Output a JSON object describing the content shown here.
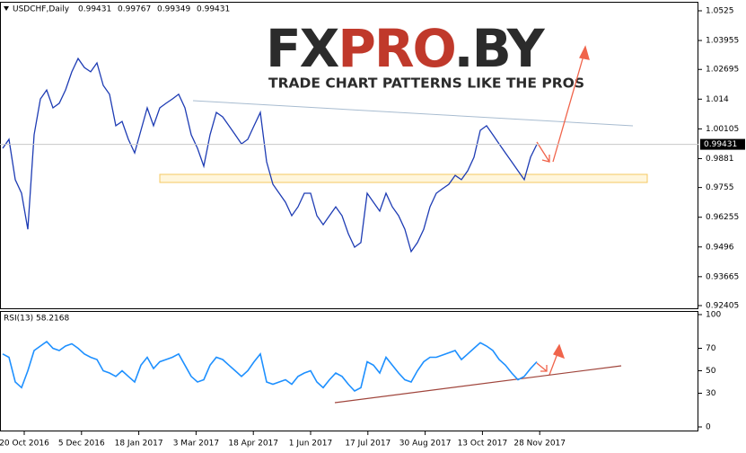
{
  "chart_data": [
    {
      "type": "line",
      "title": "USDCHF,Daily",
      "ohlc": [
        0.99431,
        0.99767,
        0.99349,
        0.99431
      ],
      "color": "#1e3cb4",
      "values": [
        0.9926,
        0.9965,
        0.9789,
        0.973,
        0.9573,
        0.9985,
        1.0141,
        1.018,
        1.0102,
        1.0122,
        1.018,
        1.0259,
        1.0317,
        1.0278,
        1.0259,
        1.0298,
        1.02,
        1.0161,
        1.0024,
        1.0043,
        0.9965,
        0.9906,
        1.0004,
        1.0102,
        1.0024,
        1.0102,
        1.0122,
        1.0141,
        1.0161,
        1.0102,
        0.9985,
        0.9926,
        0.9848,
        0.9985,
        1.0082,
        1.0063,
        1.0024,
        0.9985,
        0.9945,
        0.9965,
        1.0024,
        1.0082,
        0.9867,
        0.9769,
        0.973,
        0.9691,
        0.9632,
        0.9671,
        0.973,
        0.973,
        0.9632,
        0.9593,
        0.9632,
        0.9671,
        0.9632,
        0.9554,
        0.9495,
        0.9515,
        0.973,
        0.9691,
        0.9652,
        0.973,
        0.9671,
        0.9632,
        0.9573,
        0.9476,
        0.9515,
        0.9573,
        0.9671,
        0.973,
        0.975,
        0.9769,
        0.9808,
        0.9789,
        0.9828,
        0.9887,
        1.0004,
        1.0024,
        0.9985,
        0.9945,
        0.9906,
        0.9867,
        0.9828,
        0.9789,
        0.9887,
        0.99431
      ],
      "ylim": [
        0.92288,
        1.05602
      ],
      "yticks": [
        1.0525,
        1.03955,
        1.02695,
        1.014,
        1.00105,
        0.9881,
        0.9755,
        0.96255,
        0.9496,
        0.93665,
        0.92405
      ],
      "x_labels": [
        "20 Oct 2016",
        "5 Dec 2016",
        "18 Jan 2017",
        "3 Mar 2017",
        "18 Apr 2017",
        "1 Jun 2017",
        "17 Jul 2017",
        "30 Aug 2017",
        "13 Oct 2017",
        "28 Nov 2017"
      ]
    },
    {
      "type": "line",
      "title": "RSI(13)",
      "last": 58.2168,
      "color": "#1e90ff",
      "values": [
        65,
        62,
        40,
        35,
        50,
        68,
        72,
        76,
        70,
        68,
        72,
        74,
        70,
        65,
        62,
        60,
        50,
        48,
        45,
        50,
        45,
        40,
        55,
        62,
        52,
        58,
        60,
        62,
        65,
        55,
        45,
        40,
        42,
        55,
        62,
        60,
        55,
        50,
        45,
        50,
        58,
        65,
        40,
        38,
        40,
        42,
        38,
        45,
        48,
        50,
        40,
        35,
        42,
        48,
        45,
        38,
        32,
        35,
        58,
        55,
        48,
        62,
        55,
        48,
        42,
        40,
        50,
        58,
        62,
        62,
        64,
        66,
        68,
        60,
        65,
        70,
        75,
        72,
        68,
        60,
        55,
        48,
        42,
        45,
        52,
        58
      ],
      "ylim": [
        0,
        100
      ],
      "yticks": [
        100,
        70,
        50,
        30,
        0
      ]
    }
  ],
  "watermark": {
    "logo": [
      "FX",
      "PRO",
      ".BY"
    ],
    "tagline": "TRADE CHART PATTERNS LIKE THE PROS"
  }
}
